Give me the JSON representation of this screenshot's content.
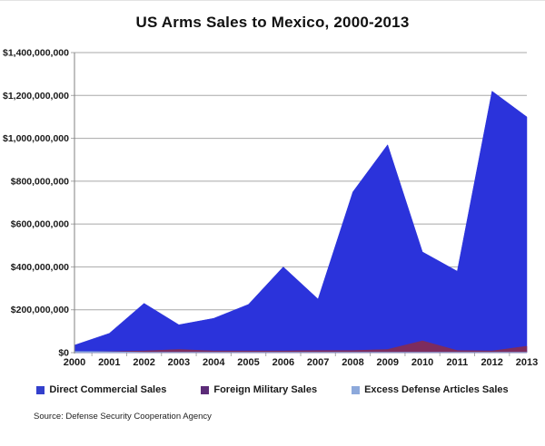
{
  "title": "US Arms Sales to Mexico, 2000-2013",
  "source": "Source: Defense Security Cooperation Agency",
  "colors": {
    "grid": "#a8a8a8",
    "axis": "#808080",
    "tick": "#a8a8a8",
    "text": "#1a1a1a"
  },
  "legend": [
    {
      "label": "Direct Commercial Sales",
      "color": "#3340cc"
    },
    {
      "label": "Foreign Military Sales",
      "color": "#5c2c78"
    },
    {
      "label": "Excess Defense Articles Sales",
      "color": "#8da9db"
    }
  ],
  "chart_data": {
    "type": "area",
    "mode": "overlap",
    "title": "US Arms Sales to Mexico, 2000-2013",
    "xlabel": "",
    "ylabel": "",
    "grid": true,
    "legend_position": "bottom",
    "x": [
      "2000",
      "2001",
      "2002",
      "2003",
      "2004",
      "2005",
      "2006",
      "2007",
      "2008",
      "2009",
      "2010",
      "2011",
      "2012",
      "2013"
    ],
    "ylim": [
      0,
      1400000000
    ],
    "ytick_step": 200000000,
    "ytick_labels": [
      "$0",
      "$200,000,000",
      "$400,000,000",
      "$600,000,000",
      "$800,000,000",
      "$1,000,000,000",
      "$1,200,000,000",
      "$1,400,000,000"
    ],
    "series": [
      {
        "name": "Direct Commercial Sales",
        "color": "#2b33db",
        "values": [
          35000000,
          90000000,
          230000000,
          130000000,
          160000000,
          225000000,
          400000000,
          250000000,
          750000000,
          970000000,
          470000000,
          380000000,
          1220000000,
          1100000000
        ]
      },
      {
        "name": "Foreign Military Sales",
        "color": "#7d2c5e",
        "values": [
          5000000,
          5000000,
          8000000,
          15000000,
          8000000,
          8000000,
          8000000,
          10000000,
          10000000,
          15000000,
          55000000,
          10000000,
          8000000,
          30000000
        ]
      },
      {
        "name": "Excess Defense Articles Sales",
        "color": "#8da9db",
        "values": [
          6000000,
          4000000,
          2000000,
          2000000,
          2000000,
          2000000,
          2000000,
          2000000,
          2000000,
          2000000,
          2000000,
          2000000,
          2000000,
          2000000
        ]
      }
    ]
  }
}
